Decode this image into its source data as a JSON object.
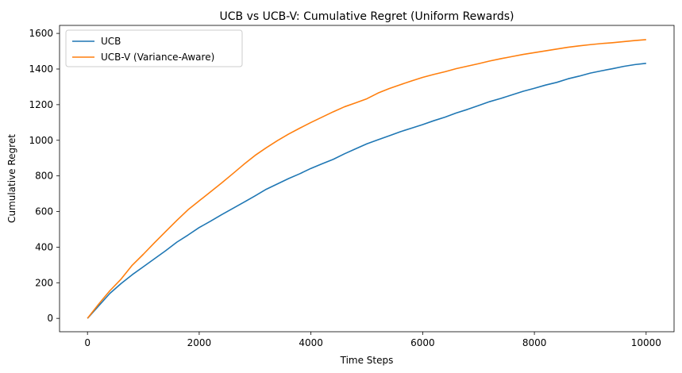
{
  "chart_data": {
    "type": "line",
    "title": "UCB vs UCB-V: Cumulative Regret (Uniform Rewards)",
    "xlabel": "Time Steps",
    "ylabel": "Cumulative Regret",
    "xlim": [
      -500,
      10500
    ],
    "ylim": [
      -75,
      1645
    ],
    "xticks": [
      0,
      2000,
      4000,
      6000,
      8000,
      10000
    ],
    "yticks": [
      0,
      200,
      400,
      600,
      800,
      1000,
      1200,
      1400,
      1600
    ],
    "grid": false,
    "legend": "upper left",
    "x": [
      0,
      200,
      400,
      600,
      800,
      1000,
      1200,
      1400,
      1600,
      1800,
      2000,
      2200,
      2400,
      2600,
      2800,
      3000,
      3200,
      3400,
      3600,
      3800,
      4000,
      4200,
      4400,
      4600,
      4800,
      5000,
      5200,
      5400,
      5600,
      5800,
      6000,
      6200,
      6400,
      6600,
      6800,
      7000,
      7200,
      7400,
      7600,
      7800,
      8000,
      8200,
      8400,
      8600,
      8800,
      9000,
      9200,
      9400,
      9600,
      9800,
      10000
    ],
    "series": [
      {
        "name": "UCB",
        "color": "#1f77b4",
        "values": [
          0,
          70,
          140,
          195,
          245,
          290,
          335,
          380,
          428,
          468,
          510,
          545,
          582,
          617,
          652,
          688,
          725,
          755,
          785,
          812,
          842,
          868,
          893,
          924,
          952,
          980,
          1003,
          1025,
          1048,
          1068,
          1088,
          1110,
          1130,
          1153,
          1173,
          1195,
          1217,
          1235,
          1255,
          1275,
          1292,
          1310,
          1325,
          1345,
          1360,
          1377,
          1390,
          1402,
          1415,
          1425,
          1432
        ]
      },
      {
        "name": "UCB-V (Variance-Aware)",
        "color": "#ff7f0e",
        "values": [
          0,
          80,
          155,
          220,
          298,
          360,
          425,
          488,
          550,
          610,
          660,
          710,
          760,
          812,
          865,
          915,
          958,
          998,
          1035,
          1068,
          1100,
          1130,
          1160,
          1188,
          1210,
          1233,
          1265,
          1290,
          1312,
          1333,
          1353,
          1370,
          1385,
          1402,
          1416,
          1430,
          1445,
          1458,
          1470,
          1482,
          1492,
          1502,
          1512,
          1522,
          1530,
          1537,
          1543,
          1548,
          1554,
          1560,
          1565
        ]
      }
    ]
  }
}
